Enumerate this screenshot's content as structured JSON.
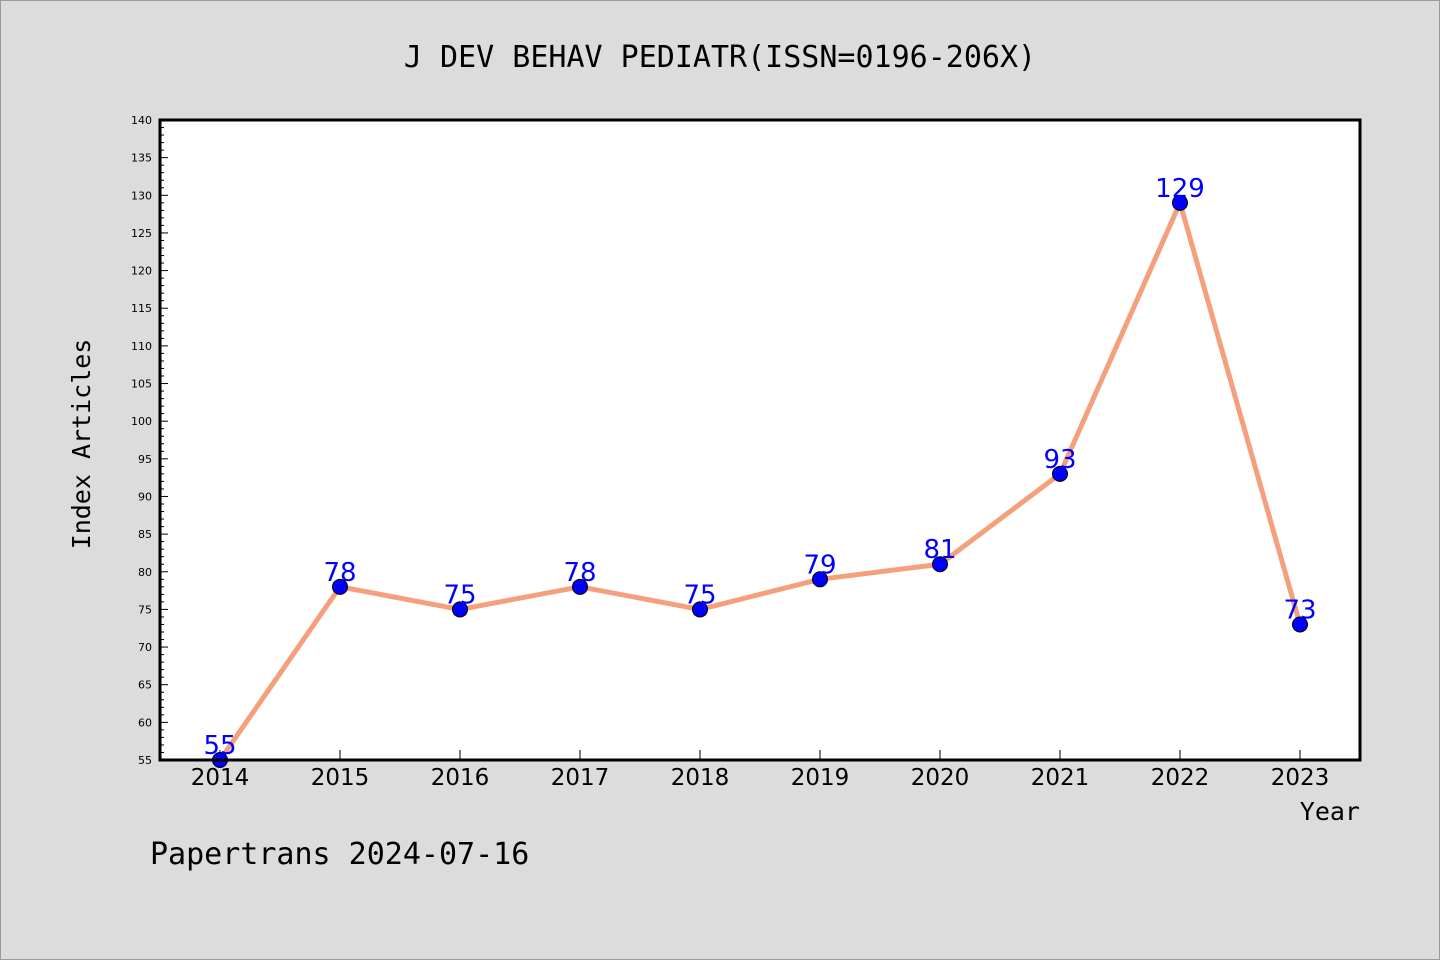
{
  "chart_data": {
    "type": "line",
    "title": "J DEV BEHAV PEDIATR(ISSN=0196-206X)",
    "xlabel": "Year",
    "ylabel": "Index Articles",
    "categories": [
      "2014",
      "2015",
      "2016",
      "2017",
      "2018",
      "2019",
      "2020",
      "2021",
      "2022",
      "2023"
    ],
    "series": [
      {
        "values": [
          55,
          78,
          75,
          78,
          75,
          79,
          81,
          93,
          129,
          73
        ]
      }
    ],
    "ylim": [
      55,
      140
    ],
    "yticks": [
      55,
      60,
      65,
      70,
      75,
      80,
      85,
      90,
      95,
      100,
      105,
      110,
      115,
      120,
      125,
      130,
      135,
      140
    ],
    "grid": false,
    "colors": {
      "line": "#f4a07c",
      "marker": "#0000ff",
      "label": "#0000ff",
      "background": "#dcdcdc",
      "plot": "#ffffff"
    }
  },
  "footer": "Papertrans 2024-07-16"
}
